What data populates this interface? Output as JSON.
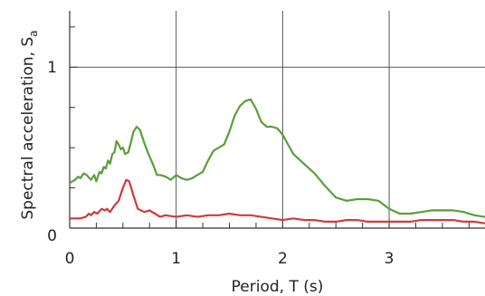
{
  "chart_data": {
    "type": "line",
    "title": "",
    "xlabel": "Period, T (s)",
    "ylabel_main": "Spectral acceleration, S",
    "ylabel_sub": "a",
    "xlim": [
      0,
      3.9
    ],
    "ylim": [
      0,
      1.35
    ],
    "x_ticks": [
      0,
      1,
      2,
      3
    ],
    "x_tick_labels": [
      "0",
      "1",
      "2",
      "3"
    ],
    "x_minor_step": 0.25,
    "y_ticks": [
      0,
      1
    ],
    "y_tick_labels": [
      "0",
      "1"
    ],
    "y_minor_step": 0.25,
    "grid": "major",
    "series": [
      {
        "color": "#5a9e3a",
        "points": [
          [
            0.0,
            0.28
          ],
          [
            0.05,
            0.3
          ],
          [
            0.08,
            0.32
          ],
          [
            0.1,
            0.31
          ],
          [
            0.13,
            0.34
          ],
          [
            0.16,
            0.33
          ],
          [
            0.2,
            0.3
          ],
          [
            0.23,
            0.33
          ],
          [
            0.25,
            0.29
          ],
          [
            0.28,
            0.35
          ],
          [
            0.3,
            0.34
          ],
          [
            0.32,
            0.38
          ],
          [
            0.34,
            0.37
          ],
          [
            0.36,
            0.42
          ],
          [
            0.38,
            0.4
          ],
          [
            0.4,
            0.46
          ],
          [
            0.42,
            0.47
          ],
          [
            0.44,
            0.54
          ],
          [
            0.46,
            0.52
          ],
          [
            0.48,
            0.49
          ],
          [
            0.5,
            0.5
          ],
          [
            0.52,
            0.46
          ],
          [
            0.55,
            0.47
          ],
          [
            0.57,
            0.52
          ],
          [
            0.6,
            0.6
          ],
          [
            0.63,
            0.63
          ],
          [
            0.66,
            0.61
          ],
          [
            0.7,
            0.53
          ],
          [
            0.74,
            0.46
          ],
          [
            0.78,
            0.4
          ],
          [
            0.82,
            0.33
          ],
          [
            0.85,
            0.33
          ],
          [
            0.9,
            0.32
          ],
          [
            0.95,
            0.3
          ],
          [
            1.0,
            0.33
          ],
          [
            1.05,
            0.31
          ],
          [
            1.1,
            0.3
          ],
          [
            1.15,
            0.31
          ],
          [
            1.2,
            0.33
          ],
          [
            1.25,
            0.35
          ],
          [
            1.3,
            0.42
          ],
          [
            1.35,
            0.48
          ],
          [
            1.4,
            0.5
          ],
          [
            1.45,
            0.52
          ],
          [
            1.5,
            0.6
          ],
          [
            1.55,
            0.7
          ],
          [
            1.6,
            0.76
          ],
          [
            1.65,
            0.79
          ],
          [
            1.7,
            0.8
          ],
          [
            1.75,
            0.74
          ],
          [
            1.8,
            0.66
          ],
          [
            1.85,
            0.63
          ],
          [
            1.9,
            0.63
          ],
          [
            1.95,
            0.62
          ],
          [
            2.0,
            0.58
          ],
          [
            2.05,
            0.52
          ],
          [
            2.1,
            0.46
          ],
          [
            2.2,
            0.4
          ],
          [
            2.3,
            0.34
          ],
          [
            2.4,
            0.26
          ],
          [
            2.5,
            0.19
          ],
          [
            2.6,
            0.17
          ],
          [
            2.7,
            0.18
          ],
          [
            2.8,
            0.18
          ],
          [
            2.9,
            0.17
          ],
          [
            3.0,
            0.12
          ],
          [
            3.1,
            0.09
          ],
          [
            3.2,
            0.09
          ],
          [
            3.3,
            0.1
          ],
          [
            3.4,
            0.11
          ],
          [
            3.5,
            0.11
          ],
          [
            3.6,
            0.11
          ],
          [
            3.7,
            0.1
          ],
          [
            3.8,
            0.08
          ],
          [
            3.9,
            0.07
          ]
        ]
      },
      {
        "color": "#d03a3a",
        "points": [
          [
            0.0,
            0.06
          ],
          [
            0.1,
            0.06
          ],
          [
            0.15,
            0.07
          ],
          [
            0.18,
            0.09
          ],
          [
            0.2,
            0.08
          ],
          [
            0.23,
            0.1
          ],
          [
            0.26,
            0.09
          ],
          [
            0.3,
            0.12
          ],
          [
            0.33,
            0.11
          ],
          [
            0.35,
            0.12
          ],
          [
            0.38,
            0.1
          ],
          [
            0.42,
            0.14
          ],
          [
            0.46,
            0.17
          ],
          [
            0.5,
            0.25
          ],
          [
            0.53,
            0.3
          ],
          [
            0.56,
            0.29
          ],
          [
            0.6,
            0.2
          ],
          [
            0.64,
            0.12
          ],
          [
            0.7,
            0.1
          ],
          [
            0.75,
            0.11
          ],
          [
            0.8,
            0.09
          ],
          [
            0.85,
            0.07
          ],
          [
            0.9,
            0.08
          ],
          [
            1.0,
            0.07
          ],
          [
            1.1,
            0.08
          ],
          [
            1.2,
            0.07
          ],
          [
            1.3,
            0.08
          ],
          [
            1.4,
            0.08
          ],
          [
            1.5,
            0.09
          ],
          [
            1.6,
            0.08
          ],
          [
            1.7,
            0.08
          ],
          [
            1.8,
            0.07
          ],
          [
            1.9,
            0.06
          ],
          [
            2.0,
            0.05
          ],
          [
            2.1,
            0.06
          ],
          [
            2.2,
            0.05
          ],
          [
            2.3,
            0.05
          ],
          [
            2.4,
            0.04
          ],
          [
            2.5,
            0.04
          ],
          [
            2.6,
            0.05
          ],
          [
            2.7,
            0.05
          ],
          [
            2.8,
            0.04
          ],
          [
            2.9,
            0.04
          ],
          [
            3.0,
            0.04
          ],
          [
            3.1,
            0.04
          ],
          [
            3.2,
            0.04
          ],
          [
            3.3,
            0.05
          ],
          [
            3.4,
            0.05
          ],
          [
            3.5,
            0.05
          ],
          [
            3.6,
            0.05
          ],
          [
            3.7,
            0.04
          ],
          [
            3.8,
            0.04
          ],
          [
            3.9,
            0.03
          ]
        ]
      }
    ]
  }
}
